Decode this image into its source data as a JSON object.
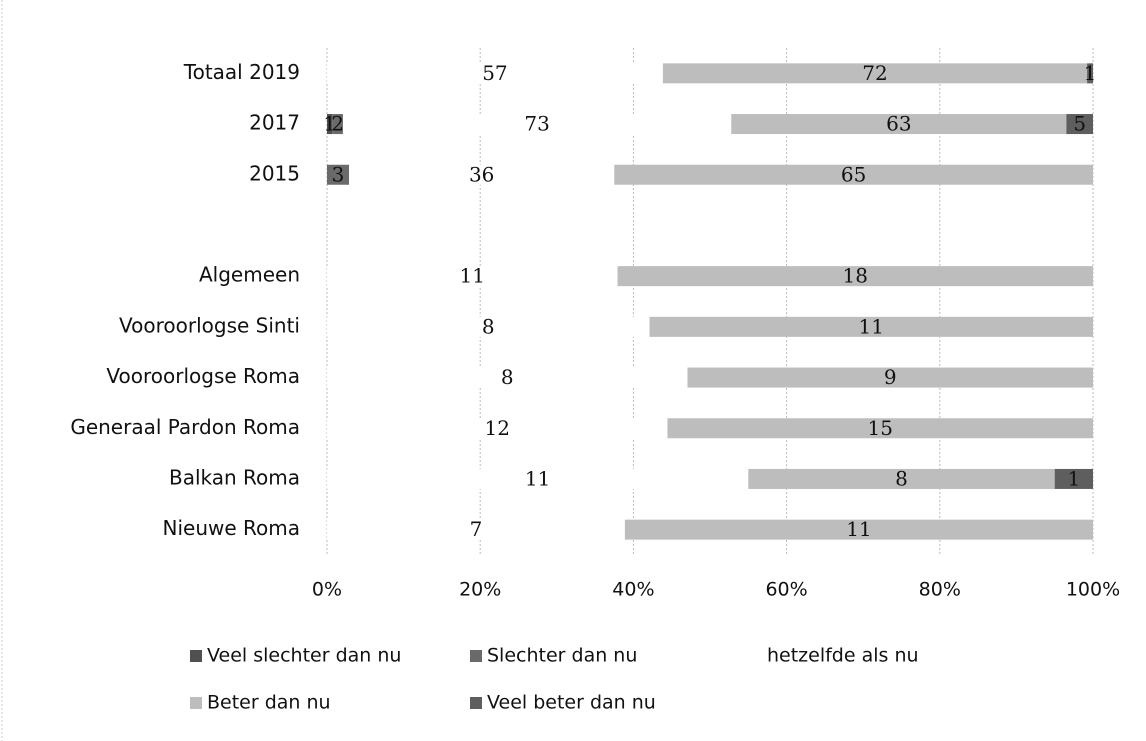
{
  "chart_data": {
    "type": "bar100h",
    "categories": [
      "Totaal 2019",
      "2017",
      "2015",
      null,
      "Algemeen",
      "Vooroorlogse Sinti",
      "Vooroorlogse Roma",
      "Generaal Pardon Roma",
      "Balkan Roma",
      "Nieuwe Roma"
    ],
    "series": [
      {
        "name": "Veel slechter dan nu",
        "color": "#505050",
        "values": [
          null,
          1,
          null,
          null,
          null,
          null,
          null,
          null,
          null,
          null
        ]
      },
      {
        "name": "Slechter dan nu",
        "color": "#6a6a6a",
        "values": [
          null,
          2,
          3,
          null,
          null,
          null,
          null,
          null,
          null,
          null
        ]
      },
      {
        "name": "hetzelfde als nu",
        "color": "#ffffff",
        "values": [
          57,
          73,
          36,
          null,
          11,
          8,
          8,
          12,
          11,
          7
        ]
      },
      {
        "name": "Beter dan nu",
        "color": "#bdbdbd",
        "values": [
          72,
          63,
          65,
          null,
          18,
          11,
          9,
          15,
          8,
          11
        ]
      },
      {
        "name": "Veel beter dan nu",
        "color": "#5e5e5e",
        "values": [
          1,
          5,
          null,
          null,
          null,
          null,
          null,
          null,
          1,
          null
        ]
      }
    ],
    "xlim": [
      0,
      100
    ],
    "xticks": [
      {
        "value": 0,
        "label": "0%"
      },
      {
        "value": 20,
        "label": "20%"
      },
      {
        "value": 40,
        "label": "40%"
      },
      {
        "value": 60,
        "label": "60%"
      },
      {
        "value": 80,
        "label": "80%"
      },
      {
        "value": 100,
        "label": "100%"
      }
    ],
    "grid": true
  }
}
